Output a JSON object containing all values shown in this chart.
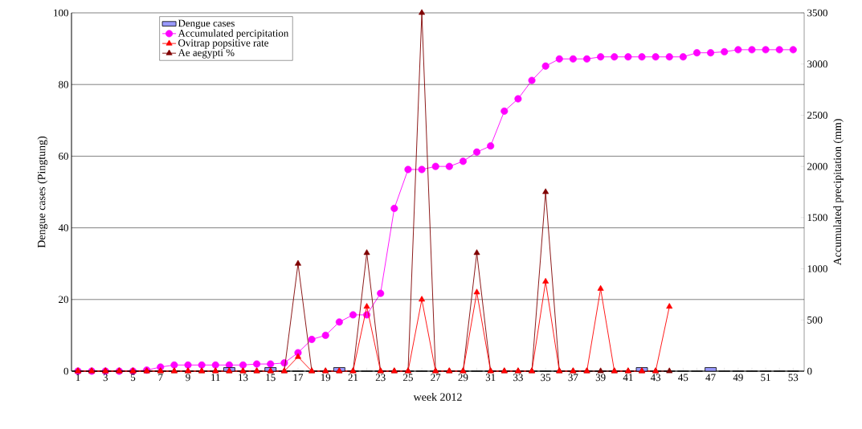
{
  "chart_data": {
    "type": "bar",
    "xlabel": "week 2012",
    "ylabel": "Dengue cases (Pingtung)",
    "y2label": "Accumulated precipitation (mm)",
    "categories": [
      "1",
      null,
      "3",
      null,
      "5",
      null,
      "7",
      null,
      "9",
      null,
      "11",
      null,
      "13",
      null,
      "15",
      null,
      "17",
      null,
      "19",
      null,
      "21",
      null,
      "23",
      null,
      "25",
      null,
      "27",
      null,
      "29",
      null,
      "31",
      null,
      "33",
      null,
      "35",
      null,
      "37",
      null,
      "39",
      null,
      "41",
      null,
      "43",
      null,
      "45",
      null,
      "47",
      null,
      "49",
      null,
      "51",
      null,
      "53"
    ],
    "series": [
      {
        "name": "Dengue cases",
        "color": "#9999ff",
        "values": [
          0,
          0,
          0,
          0,
          0,
          0,
          0,
          0,
          0,
          0,
          0,
          1,
          0,
          0,
          1,
          0,
          0,
          0,
          0,
          1,
          0,
          0,
          0,
          0,
          0,
          0,
          0,
          0,
          0,
          0,
          0,
          0,
          0,
          0,
          0,
          0,
          0,
          0,
          0,
          0,
          0,
          1,
          0,
          0,
          0,
          0,
          1,
          0,
          0,
          0,
          0,
          0,
          0
        ]
      },
      {
        "name": "Accumulated percipitation",
        "type": "line",
        "axis": "y2",
        "marker": "circle",
        "color": "#ff00ff",
        "values": [
          0,
          0,
          0,
          0,
          0,
          10,
          40,
          60,
          60,
          60,
          60,
          60,
          60,
          70,
          70,
          80,
          180,
          310,
          350,
          480,
          550,
          550,
          760,
          1590,
          1970,
          1970,
          2000,
          2000,
          2050,
          2140,
          2200,
          2540,
          2660,
          2840,
          2980,
          3050,
          3050,
          3050,
          3070,
          3070,
          3070,
          3070,
          3070,
          3070,
          3070,
          3110,
          3110,
          3120,
          3140,
          3140,
          3140,
          3140,
          3140
        ]
      },
      {
        "name": "Ovitrap popsitive rate",
        "type": "line",
        "marker": "triangle",
        "color": "#ff0000",
        "values": [
          0,
          0,
          0,
          0,
          0,
          0,
          0,
          0,
          0,
          0,
          0,
          0,
          0,
          0,
          0,
          0,
          4,
          0,
          0,
          0,
          0,
          18,
          0,
          0,
          0,
          20,
          0,
          0,
          0,
          22,
          0,
          0,
          0,
          0,
          25,
          0,
          0,
          0,
          23,
          0,
          0,
          0,
          0,
          18,
          null,
          null,
          null,
          null,
          null,
          null,
          null,
          null,
          null
        ]
      },
      {
        "name": "Ae aegypti %",
        "type": "line",
        "marker": "triangle",
        "color": "#800000",
        "values": [
          0,
          0,
          0,
          0,
          0,
          0,
          0,
          0,
          0,
          0,
          0,
          0,
          0,
          0,
          0,
          0,
          30,
          0,
          0,
          0,
          0,
          33,
          0,
          0,
          0,
          100,
          0,
          0,
          0,
          33,
          0,
          0,
          0,
          0,
          50,
          0,
          0,
          0,
          0,
          0,
          0,
          0,
          0,
          0,
          null,
          null,
          null,
          null,
          null,
          null,
          null,
          null,
          null
        ]
      }
    ],
    "ylim": [
      0,
      100
    ],
    "yticks": [
      0,
      20,
      40,
      60,
      80,
      100
    ],
    "y2lim": [
      0,
      3500
    ],
    "y2ticks": [
      0,
      500,
      1000,
      1500,
      2000,
      2500,
      3000,
      3500
    ],
    "grid": "y",
    "legend": "top left"
  }
}
